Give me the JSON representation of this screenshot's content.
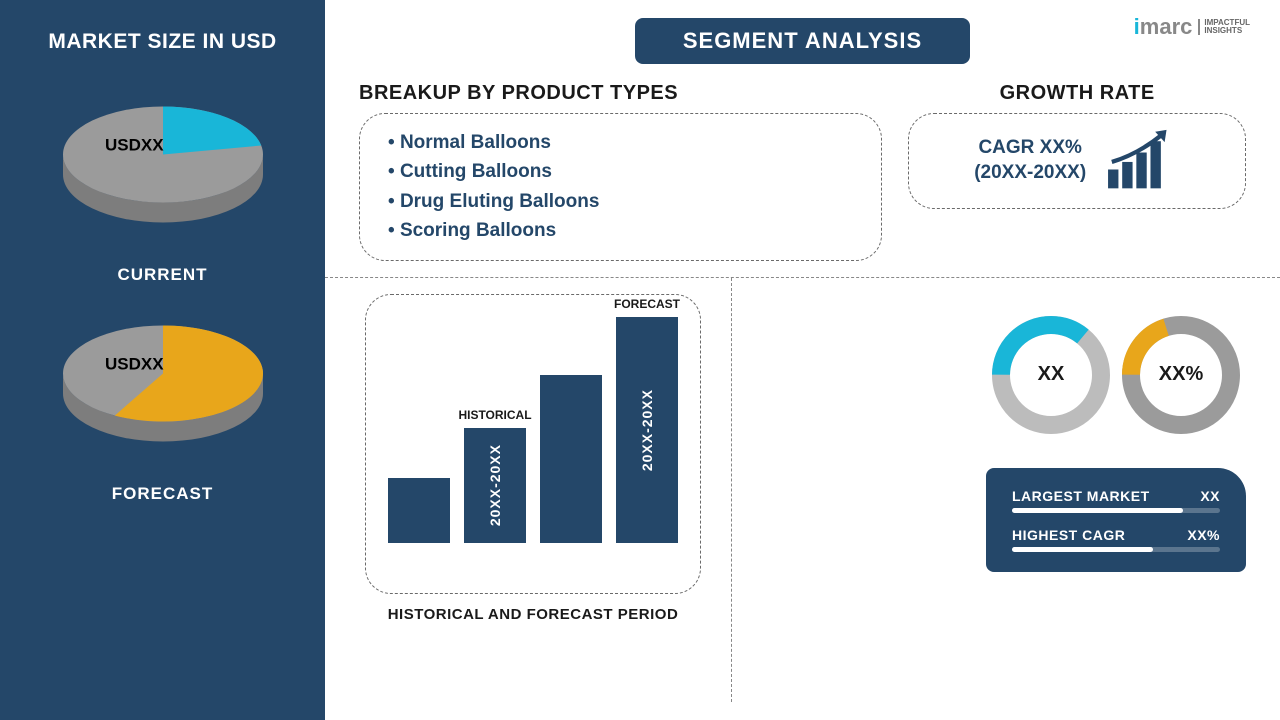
{
  "colors": {
    "sidebar_bg": "#244769",
    "accent_cyan": "#19b6d8",
    "accent_yellow": "#e8a61b",
    "gray": "#9b9b9b",
    "gray_dark": "#7d7d7d",
    "text_dark": "#1a1a1a"
  },
  "logo": {
    "i": "i",
    "marc": "marc",
    "tag1": "IMPACTFUL",
    "tag2": "INSIGHTS"
  },
  "sidebar": {
    "title": "MARKET SIZE IN USD",
    "pies": [
      {
        "label": "CURRENT",
        "value_label": "USDXX",
        "slice_pct": 22,
        "slice_color": "#19b6d8",
        "rest_color": "#9b9b9b"
      },
      {
        "label": "FORECAST",
        "value_label": "USDXX",
        "slice_pct": 58,
        "slice_color": "#e8a61b",
        "rest_color": "#9b9b9b"
      }
    ]
  },
  "title": "SEGMENT ANALYSIS",
  "products": {
    "title": "BREAKUP BY PRODUCT TYPES",
    "items": [
      "Normal Balloons",
      "Cutting Balloons",
      "Drug Eluting Balloons",
      "Scoring Balloons"
    ]
  },
  "growth": {
    "title": "GROWTH RATE",
    "line1": "CAGR XX%",
    "line2": "(20XX-20XX)"
  },
  "hist": {
    "caption": "HISTORICAL AND FORECAST PERIOD",
    "bars": [
      {
        "height_pct": 28,
        "top_label": "",
        "inside_label": ""
      },
      {
        "height_pct": 50,
        "top_label": "HISTORICAL",
        "inside_label": "20XX-20XX"
      },
      {
        "height_pct": 73,
        "top_label": "",
        "inside_label": ""
      },
      {
        "height_pct": 98,
        "top_label": "FORECAST",
        "inside_label": "20XX-20XX"
      }
    ],
    "bar_color": "#244769"
  },
  "donuts": [
    {
      "center": "XX",
      "pct": 36,
      "color": "#19b6d8",
      "rest": "#bcbcbc",
      "thickness": 18
    },
    {
      "center": "XX%",
      "pct": 20,
      "color": "#e8a61b",
      "rest": "#9b9b9b",
      "thickness": 18
    }
  ],
  "metrics": {
    "rows": [
      {
        "label": "LARGEST MARKET",
        "value": "XX",
        "bar_pct": 82
      },
      {
        "label": "HIGHEST CAGR",
        "value": "XX%",
        "bar_pct": 68
      }
    ]
  }
}
